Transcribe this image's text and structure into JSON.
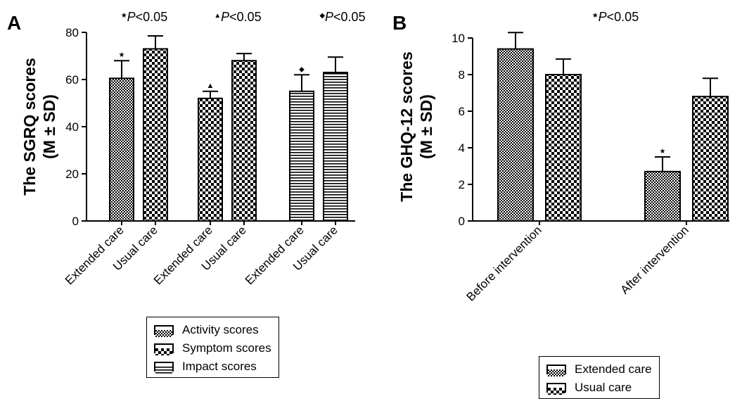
{
  "chart_data": [
    {
      "type": "bar",
      "panel_label": "A",
      "ylabel": [
        "The SGRQ scores",
        "(M ± SD)"
      ],
      "ylim": [
        0,
        80
      ],
      "yticks": [
        0,
        20,
        40,
        60,
        80
      ],
      "categories": [
        "Extended care",
        "Usual care",
        "Extended care",
        "Usual care",
        "Extended care",
        "Usual care"
      ],
      "bars": [
        {
          "category": "Extended care",
          "group": "Activity scores",
          "value": 60.5,
          "error": 7.5,
          "marker": "★",
          "pattern": "fine-check"
        },
        {
          "category": "Usual care",
          "group": "Activity scores",
          "value": 73.0,
          "error": 5.5,
          "marker": "",
          "pattern": "big-check"
        },
        {
          "category": "Extended care",
          "group": "Symptom scores",
          "value": 52.0,
          "error": 3.0,
          "marker": "▲",
          "pattern": "big-check"
        },
        {
          "category": "Usual care",
          "group": "Symptom scores",
          "value": 68.0,
          "error": 3.0,
          "marker": "",
          "pattern": "big-check"
        },
        {
          "category": "Extended care",
          "group": "Impact scores",
          "value": 55.0,
          "error": 7.0,
          "marker": "◆",
          "pattern": "hlines"
        },
        {
          "category": "Usual care",
          "group": "Impact scores",
          "value": 63.0,
          "error": 6.5,
          "marker": "",
          "pattern": "hlines"
        }
      ],
      "annotations": [
        {
          "symbol": "★",
          "text": "P<0.05",
          "pair": 0
        },
        {
          "symbol": "▲",
          "text": "P<0.05",
          "pair": 1
        },
        {
          "symbol": "◆",
          "text": "P<0.05",
          "pair": 2
        }
      ],
      "legend": [
        {
          "label": "Activity scores",
          "pattern": "fine-check"
        },
        {
          "label": "Symptom scores",
          "pattern": "big-check"
        },
        {
          "label": "Impact scores",
          "pattern": "hlines"
        }
      ]
    },
    {
      "type": "bar",
      "panel_label": "B",
      "ylabel": [
        "The GHQ-12 scores",
        "(M ± SD)"
      ],
      "ylim": [
        0,
        10
      ],
      "yticks": [
        0,
        2,
        4,
        6,
        8,
        10
      ],
      "categories": [
        "Before intervention",
        "After intervention"
      ],
      "series": [
        {
          "name": "Extended care",
          "values": [
            9.4,
            2.7
          ],
          "errors": [
            0.9,
            0.8
          ],
          "pattern": "fine-check"
        },
        {
          "name": "Usual care",
          "values": [
            8.0,
            6.8
          ],
          "errors": [
            0.85,
            1.0
          ],
          "pattern": "big-check"
        }
      ],
      "markers": [
        {
          "series": 0,
          "category": 1,
          "symbol": "★"
        }
      ],
      "annotations": [
        {
          "symbol": "★",
          "text": "P<0.05"
        }
      ],
      "legend": [
        {
          "label": "Extended care",
          "pattern": "fine-check"
        },
        {
          "label": "Usual care",
          "pattern": "big-check"
        }
      ]
    }
  ]
}
